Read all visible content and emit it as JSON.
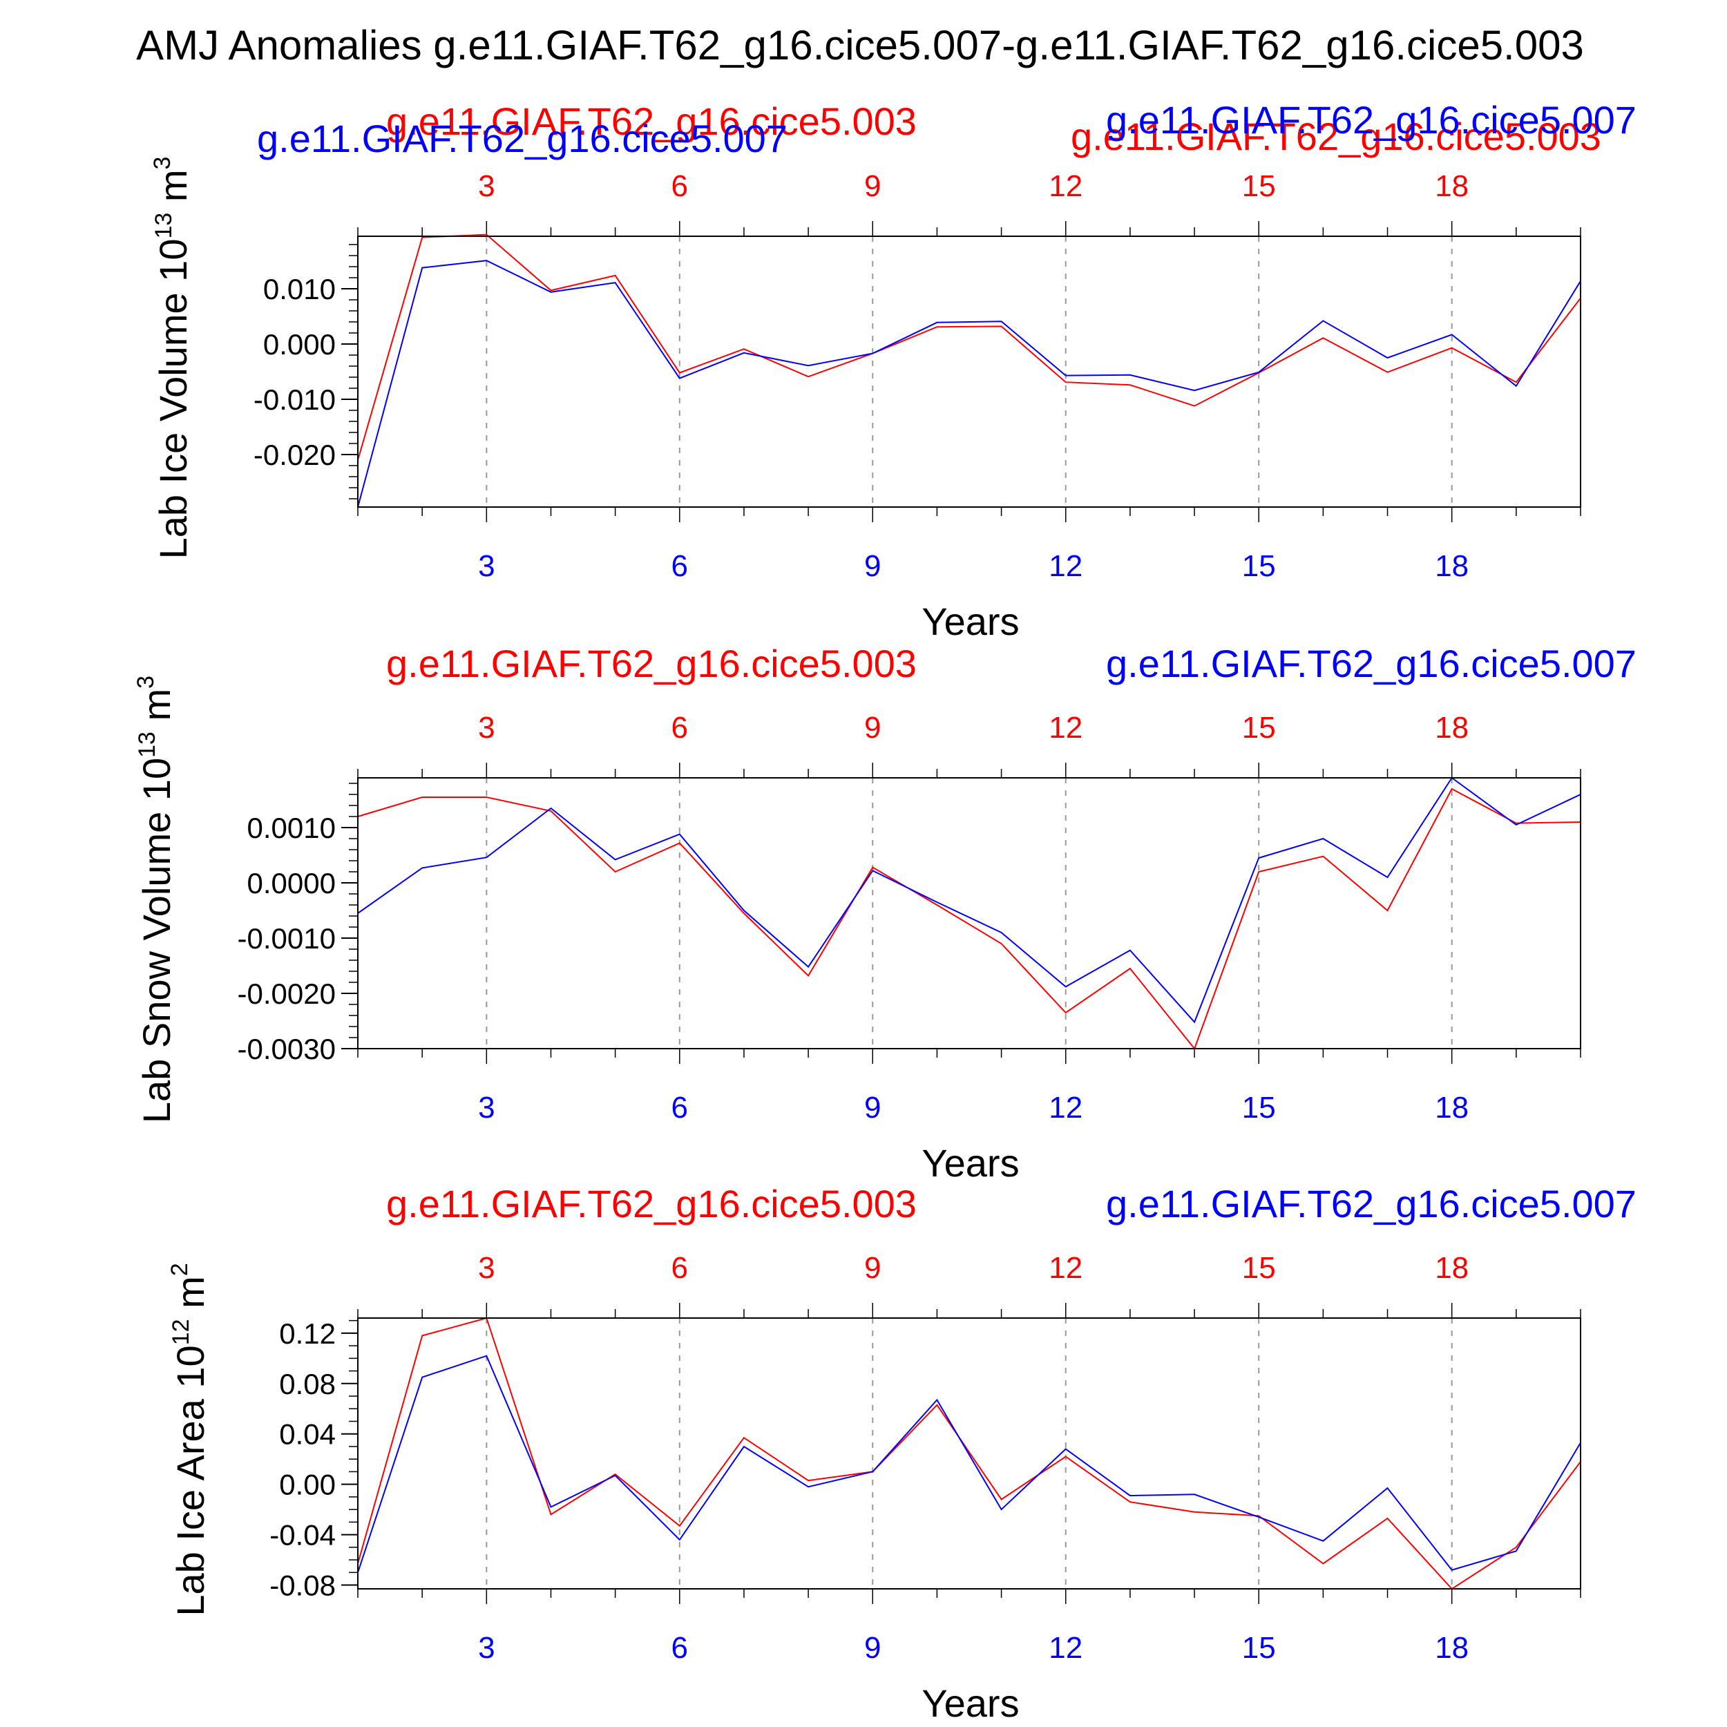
{
  "title": "AMJ Anomalies g.e11.GIAF.T62_g16.cice5.007-g.e11.GIAF.T62_g16.cice5.003",
  "colors": {
    "red": "#ff0000",
    "blue": "#0000ff",
    "axis": "#000000",
    "grid": "#999999"
  },
  "chart_data": [
    {
      "type": "line",
      "ylabel": "Lab Ice Volume 10",
      "ylabel_exp": "13",
      "ylabel_unit": " m",
      "ylabel_unit_exp": "3",
      "xlabel": "Years",
      "xlim": [
        1,
        20
      ],
      "ylim": [
        -0.0295,
        0.0195
      ],
      "xticks": [
        3,
        6,
        9,
        12,
        15,
        18
      ],
      "yticks": [
        0.01,
        0.0,
        -0.01,
        -0.02
      ],
      "yticklabels": [
        "0.010",
        "0.000",
        "-0.010",
        "-0.020"
      ],
      "yminor_step": 0.002,
      "red_labels": [
        "g.e11.GIAF.T62_g16.cice5.003",
        "g.e11.GIAF.T62_g16.cice5.003"
      ],
      "blue_labels": [
        "g.e11.GIAF.T62_g16.cice5.007",
        "g.e11.GIAF.T62_g16.cice5.007"
      ],
      "x": [
        1,
        2,
        3,
        4,
        5,
        6,
        7,
        8,
        9,
        10,
        11,
        12,
        13,
        14,
        15,
        16,
        17,
        18,
        19,
        20
      ],
      "series": [
        {
          "name": "g.e11.GIAF.T62_g16.cice5.003",
          "color": "red",
          "values": [
            -0.021,
            0.0193,
            0.0198,
            0.0097,
            0.0124,
            -0.0052,
            -0.0009,
            -0.0059,
            -0.0017,
            0.0031,
            0.0032,
            -0.0069,
            -0.0074,
            -0.0112,
            -0.0052,
            0.0011,
            -0.0051,
            -0.0007,
            -0.0069,
            0.0083
          ]
        },
        {
          "name": "g.e11.GIAF.T62_g16.cice5.007",
          "color": "blue",
          "values": [
            -0.0295,
            0.0138,
            0.0151,
            0.0094,
            0.0111,
            -0.0062,
            -0.0016,
            -0.0039,
            -0.0017,
            0.0039,
            0.0041,
            -0.0057,
            -0.0056,
            -0.0084,
            -0.0051,
            0.0042,
            -0.0025,
            0.0017,
            -0.0076,
            0.0114
          ]
        }
      ]
    },
    {
      "type": "line",
      "ylabel": "Lab Snow Volume 10",
      "ylabel_exp": "13",
      "ylabel_unit": " m",
      "ylabel_unit_exp": "3",
      "xlabel": "Years",
      "xlim": [
        1,
        20
      ],
      "ylim": [
        -0.003,
        0.0019
      ],
      "xticks": [
        3,
        6,
        9,
        12,
        15,
        18
      ],
      "yticks": [
        0.001,
        0.0,
        -0.001,
        -0.002,
        -0.003
      ],
      "yticklabels": [
        "0.0010",
        "0.0000",
        "-0.0010",
        "-0.0020",
        "-0.0030"
      ],
      "yminor_step": 0.0002,
      "red_labels": [
        "g.e11.GIAF.T62_g16.cice5.003"
      ],
      "blue_labels": [
        "g.e11.GIAF.T62_g16.cice5.007"
      ],
      "x": [
        1,
        2,
        3,
        4,
        5,
        6,
        7,
        8,
        9,
        10,
        11,
        12,
        13,
        14,
        15,
        16,
        17,
        18,
        19,
        20
      ],
      "series": [
        {
          "name": "g.e11.GIAF.T62_g16.cice5.003",
          "color": "red",
          "values": [
            0.0012,
            0.00155,
            0.00155,
            0.0013,
            0.0002,
            0.00072,
            -0.00055,
            -0.00168,
            0.00028,
            -0.0004,
            -0.0011,
            -0.00235,
            -0.00155,
            -0.003,
            0.0002,
            0.00048,
            -0.0005,
            0.0017,
            0.00108,
            0.0011
          ]
        },
        {
          "name": "g.e11.GIAF.T62_g16.cice5.007",
          "color": "blue",
          "values": [
            -0.00055,
            0.00027,
            0.00046,
            0.00135,
            0.00042,
            0.00088,
            -0.0005,
            -0.00152,
            0.00022,
            -0.00035,
            -0.0009,
            -0.00188,
            -0.00122,
            -0.00252,
            0.00045,
            0.0008,
            0.0001,
            0.0019,
            0.00105,
            0.0016
          ]
        }
      ]
    },
    {
      "type": "line",
      "ylabel": "Lab Ice Area 10",
      "ylabel_exp": "12",
      "ylabel_unit": " m",
      "ylabel_unit_exp": "2",
      "xlabel": "Years",
      "xlim": [
        1,
        20
      ],
      "ylim": [
        -0.083,
        0.132
      ],
      "xticks": [
        3,
        6,
        9,
        12,
        15,
        18
      ],
      "yticks": [
        0.12,
        0.08,
        0.04,
        0.0,
        -0.04,
        -0.08
      ],
      "yticklabels": [
        "0.12",
        "0.08",
        "0.04",
        "0.00",
        "-0.04",
        "-0.08"
      ],
      "yminor_step": 0.01,
      "red_labels": [
        "g.e11.GIAF.T62_g16.cice5.003"
      ],
      "blue_labels": [
        "g.e11.GIAF.T62_g16.cice5.007"
      ],
      "x": [
        1,
        2,
        3,
        4,
        5,
        6,
        7,
        8,
        9,
        10,
        11,
        12,
        13,
        14,
        15,
        16,
        17,
        18,
        19,
        20
      ],
      "series": [
        {
          "name": "g.e11.GIAF.T62_g16.cice5.003",
          "color": "red",
          "values": [
            -0.063,
            0.118,
            0.132,
            -0.024,
            0.008,
            -0.033,
            0.037,
            0.003,
            0.01,
            0.063,
            -0.012,
            0.022,
            -0.014,
            -0.022,
            -0.025,
            -0.063,
            -0.027,
            -0.083,
            -0.05,
            0.018
          ]
        },
        {
          "name": "g.e11.GIAF.T62_g16.cice5.007",
          "color": "blue",
          "values": [
            -0.07,
            0.085,
            0.102,
            -0.018,
            0.007,
            -0.044,
            0.03,
            -0.002,
            0.01,
            0.067,
            -0.02,
            0.028,
            -0.009,
            -0.008,
            -0.026,
            -0.045,
            -0.003,
            -0.068,
            -0.053,
            0.033
          ]
        }
      ]
    }
  ]
}
